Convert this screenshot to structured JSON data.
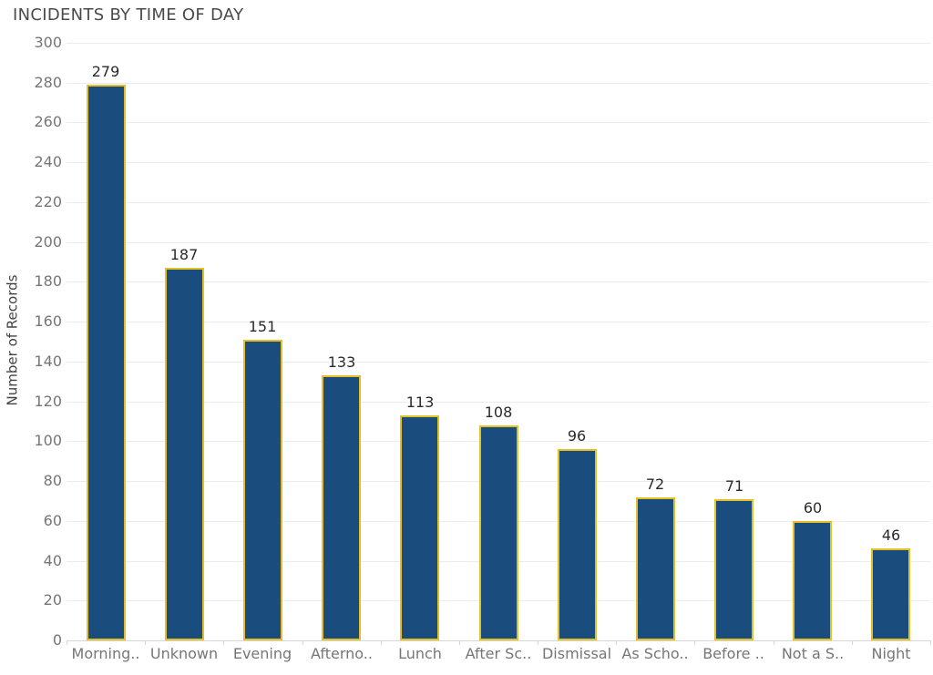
{
  "chart_data": {
    "type": "bar",
    "title": "INCIDENTS BY TIME OF DAY",
    "xlabel": "",
    "ylabel": "Number of Records",
    "ylim": [
      0,
      300
    ],
    "ytick_step": 20,
    "grid": "horizontal",
    "legend": "none",
    "value_labels_shown": true,
    "categories": [
      "Morning..",
      "Unknown",
      "Evening",
      "Afterno..",
      "Lunch",
      "After Sc..",
      "Dismissal",
      "As Scho..",
      "Before ..",
      "Not a S..",
      "Night"
    ],
    "values": [
      279,
      187,
      151,
      133,
      113,
      108,
      96,
      72,
      71,
      60,
      46
    ],
    "bar_fill_color": "#1a4c7d",
    "bar_border_color": "#e3c126"
  }
}
